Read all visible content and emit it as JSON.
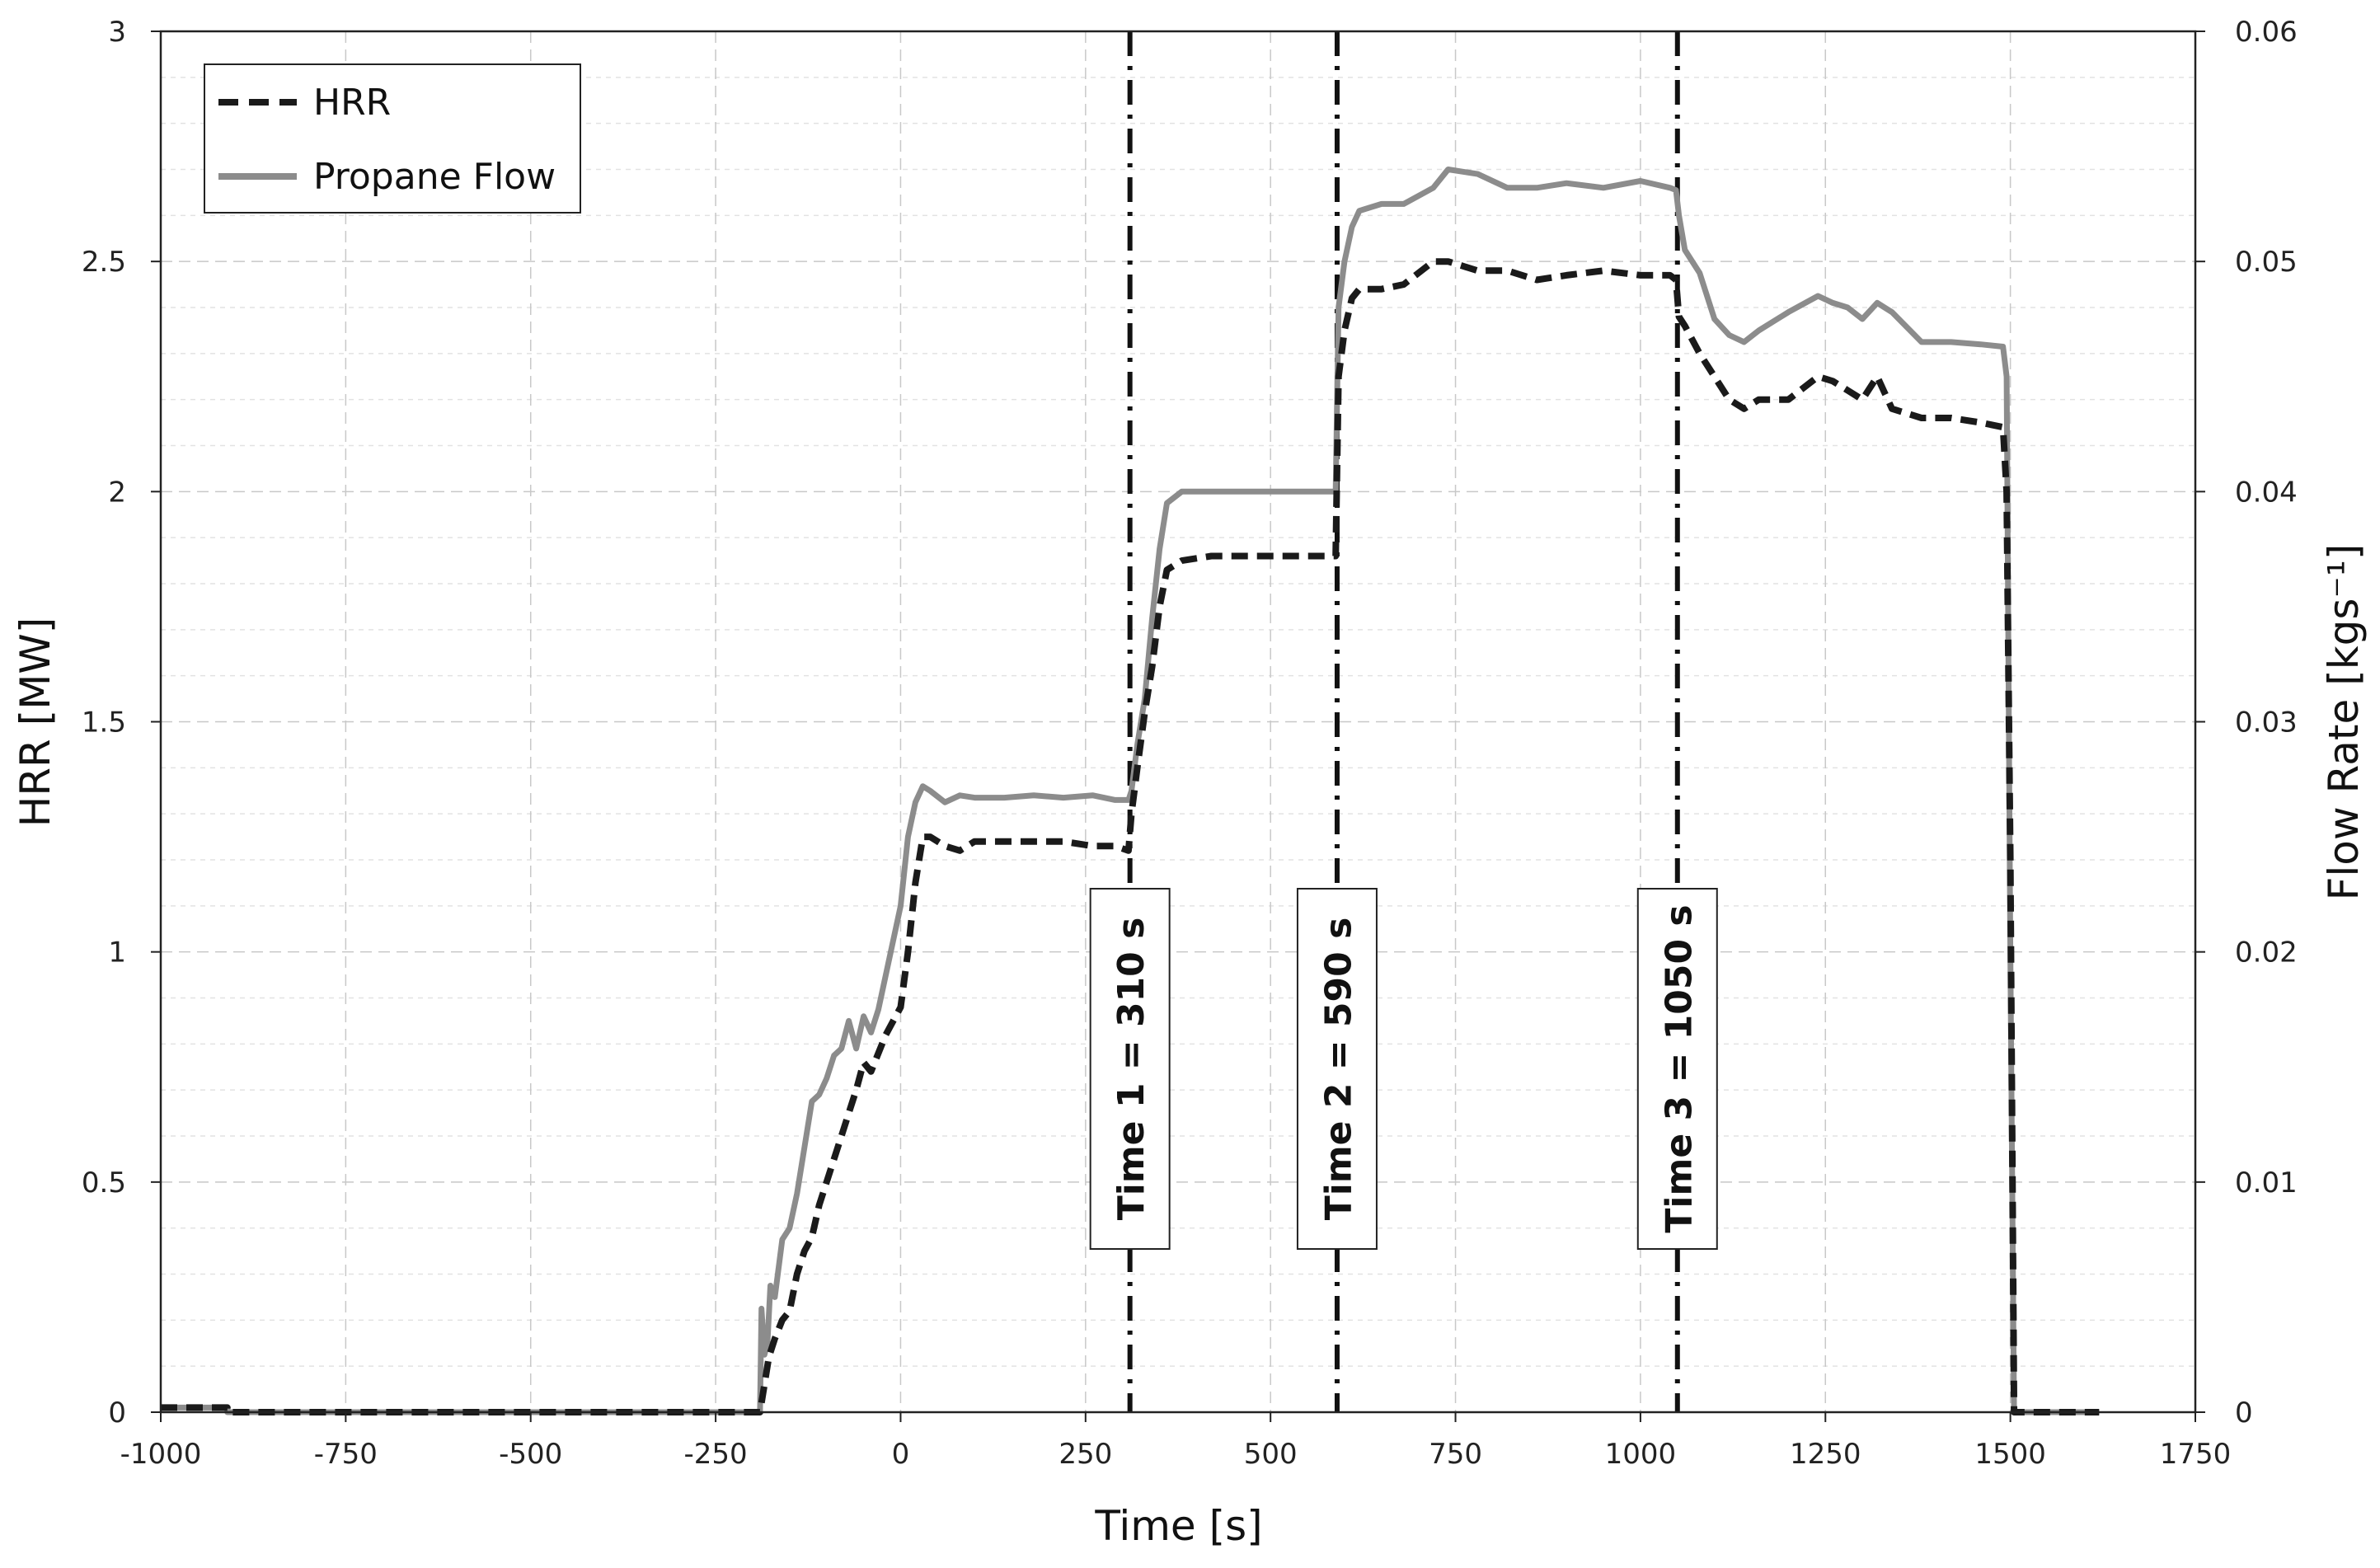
{
  "chart_data": {
    "type": "line",
    "title": "",
    "xlabel": "Time [s]",
    "ylabel_left": "HRR [MW]",
    "ylabel_right": "Flow Rate [kgs⁻¹]",
    "xlim": [
      -1000,
      1750
    ],
    "ylim_left": [
      0,
      3
    ],
    "ylim_right": [
      0,
      0.06
    ],
    "x_ticks": [
      "-1000",
      "-750",
      "-500",
      "-250",
      "0",
      "250",
      "500",
      "750",
      "1000",
      "1250",
      "1500",
      "1750"
    ],
    "y_left_ticks": [
      "0",
      "0.5",
      "1",
      "1.5",
      "2",
      "2.5",
      "3"
    ],
    "y_right_ticks": [
      "0",
      "0.01",
      "0.02",
      "0.03",
      "0.04",
      "0.05",
      "0.06"
    ],
    "grid": true,
    "legend_position": "top-left",
    "legend": [
      "HRR",
      "Propane Flow"
    ],
    "colors": {
      "hrr": "#1a1a1a",
      "propane": "#8c8c8c"
    },
    "series": [
      {
        "name": "HRR",
        "axis": "left",
        "style": "dashed",
        "x": [
          -1000,
          -910,
          -910,
          -190,
          -185,
          -178,
          -170,
          -160,
          -150,
          -140,
          -130,
          -120,
          -110,
          -100,
          -90,
          -80,
          -70,
          -60,
          -50,
          -40,
          -30,
          -20,
          -10,
          0,
          10,
          20,
          30,
          40,
          60,
          80,
          100,
          140,
          180,
          220,
          260,
          290,
          308,
          312,
          320,
          330,
          340,
          350,
          360,
          380,
          420,
          480,
          540,
          588,
          592,
          600,
          610,
          620,
          650,
          680,
          720,
          740,
          780,
          820,
          860,
          900,
          950,
          1000,
          1040,
          1048,
          1052,
          1060,
          1080,
          1100,
          1120,
          1140,
          1160,
          1200,
          1240,
          1260,
          1280,
          1300,
          1320,
          1340,
          1380,
          1420,
          1460,
          1490,
          1495,
          1500,
          1505,
          1520,
          1620
        ],
        "y": [
          0.01,
          0.01,
          0.0,
          0.0,
          0.05,
          0.12,
          0.16,
          0.2,
          0.22,
          0.3,
          0.35,
          0.38,
          0.45,
          0.5,
          0.55,
          0.6,
          0.65,
          0.7,
          0.76,
          0.74,
          0.78,
          0.82,
          0.85,
          0.88,
          1.0,
          1.15,
          1.25,
          1.25,
          1.23,
          1.22,
          1.24,
          1.24,
          1.24,
          1.24,
          1.23,
          1.23,
          1.22,
          1.3,
          1.4,
          1.52,
          1.62,
          1.75,
          1.83,
          1.85,
          1.86,
          1.86,
          1.86,
          1.86,
          2.25,
          2.35,
          2.42,
          2.44,
          2.44,
          2.45,
          2.5,
          2.5,
          2.48,
          2.48,
          2.46,
          2.47,
          2.48,
          2.47,
          2.47,
          2.46,
          2.38,
          2.36,
          2.3,
          2.25,
          2.2,
          2.18,
          2.2,
          2.2,
          2.25,
          2.24,
          2.22,
          2.2,
          2.25,
          2.18,
          2.16,
          2.16,
          2.15,
          2.14,
          2.0,
          1.2,
          0.0,
          0.0,
          0.0
        ]
      },
      {
        "name": "Propane Flow",
        "axis": "right",
        "style": "solid",
        "x": [
          -1000,
          -910,
          -910,
          -190,
          -188,
          -184,
          -180,
          -176,
          -170,
          -160,
          -150,
          -140,
          -130,
          -120,
          -110,
          -100,
          -90,
          -80,
          -70,
          -60,
          -50,
          -40,
          -30,
          -20,
          -10,
          0,
          10,
          20,
          30,
          40,
          60,
          80,
          100,
          140,
          180,
          220,
          260,
          290,
          308,
          312,
          320,
          330,
          340,
          350,
          360,
          380,
          420,
          480,
          540,
          588,
          592,
          600,
          610,
          620,
          650,
          680,
          720,
          740,
          780,
          820,
          860,
          900,
          950,
          1000,
          1040,
          1048,
          1052,
          1060,
          1080,
          1100,
          1120,
          1140,
          1160,
          1200,
          1240,
          1260,
          1280,
          1300,
          1320,
          1340,
          1380,
          1420,
          1460,
          1490,
          1495,
          1500,
          1505,
          1520,
          1620
        ],
        "y": [
          0.0002,
          0.0002,
          0.0,
          0.0,
          0.0045,
          0.0025,
          0.003,
          0.0055,
          0.005,
          0.0075,
          0.008,
          0.0095,
          0.0115,
          0.0135,
          0.0138,
          0.0145,
          0.0155,
          0.0158,
          0.017,
          0.0158,
          0.0172,
          0.0165,
          0.0175,
          0.019,
          0.0205,
          0.022,
          0.025,
          0.0265,
          0.0272,
          0.027,
          0.0265,
          0.0268,
          0.0267,
          0.0267,
          0.0268,
          0.0267,
          0.0268,
          0.0266,
          0.0266,
          0.027,
          0.029,
          0.031,
          0.0345,
          0.0375,
          0.0395,
          0.04,
          0.04,
          0.04,
          0.04,
          0.04,
          0.048,
          0.05,
          0.0515,
          0.0522,
          0.0525,
          0.0525,
          0.0532,
          0.054,
          0.0538,
          0.0532,
          0.0532,
          0.0534,
          0.0532,
          0.0535,
          0.0532,
          0.0531,
          0.052,
          0.0505,
          0.0495,
          0.0475,
          0.0468,
          0.0465,
          0.047,
          0.0478,
          0.0485,
          0.0482,
          0.048,
          0.0475,
          0.0482,
          0.0478,
          0.0465,
          0.0465,
          0.0464,
          0.0463,
          0.045,
          0.02,
          0.0,
          0.0,
          0.0
        ]
      }
    ],
    "vlines": [
      {
        "x": 310,
        "label": "Time 1 = 310 s"
      },
      {
        "x": 590,
        "label": "Time 2 = 590 s"
      },
      {
        "x": 1050,
        "label": "Time 3 =  1050 s"
      }
    ]
  }
}
